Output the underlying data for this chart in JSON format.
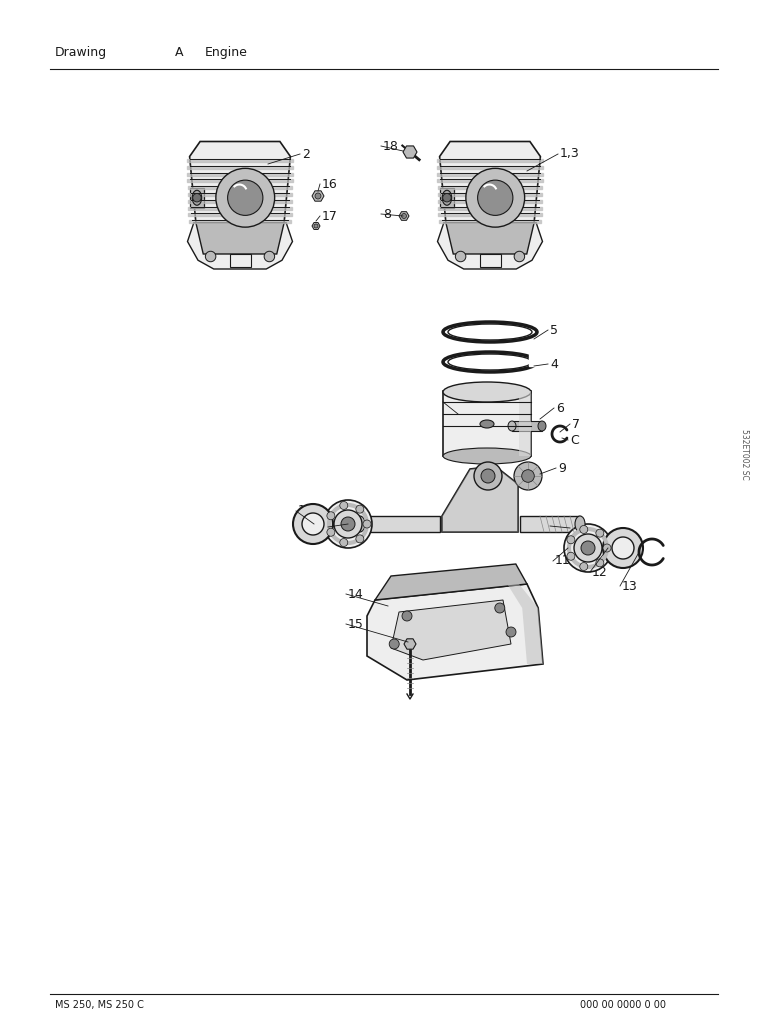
{
  "title_left": "Drawing",
  "title_mid": "A",
  "title_right": "Engine",
  "footer_left": "MS 250, MS 250 C",
  "footer_right": "000 00 0000 0 00",
  "watermark": "532ET002 SC",
  "bg_color": "#ffffff",
  "line_color": "#1a1a1a",
  "text_color": "#1a1a1a",
  "gray_fill": "#d8d8d8",
  "light_gray": "#eeeeee",
  "mid_gray": "#bbbbbb",
  "dark_gray": "#888888"
}
